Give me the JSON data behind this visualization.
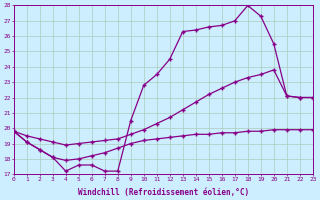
{
  "xlabel": "Windchill (Refroidissement éolien,°C)",
  "bg_color": "#cceeff",
  "grid_color": "#aaccbb",
  "line_color": "#880088",
  "x_min": 0,
  "x_max": 23,
  "y_min": 17,
  "y_max": 28,
  "line1_x": [
    0,
    1,
    2,
    3,
    4,
    5,
    6,
    7,
    8,
    9,
    10,
    11,
    12,
    13,
    14,
    15,
    16,
    17,
    18,
    19,
    20,
    21,
    22,
    23
  ],
  "line1_y": [
    19.8,
    19.1,
    18.6,
    18.1,
    17.2,
    17.6,
    17.6,
    17.2,
    17.2,
    20.5,
    22.8,
    23.5,
    24.5,
    26.3,
    26.4,
    26.6,
    26.7,
    27.0,
    28.0,
    27.3,
    25.5,
    22.1,
    22.0,
    22.0
  ],
  "line2_x": [
    0,
    1,
    2,
    3,
    4,
    5,
    6,
    7,
    8,
    9,
    10,
    11,
    12,
    13,
    14,
    15,
    16,
    17,
    18,
    19,
    20,
    21,
    22,
    23
  ],
  "line2_y": [
    19.8,
    19.5,
    19.3,
    19.1,
    18.9,
    19.0,
    19.1,
    19.2,
    19.3,
    19.6,
    19.9,
    20.3,
    20.7,
    21.2,
    21.7,
    22.2,
    22.6,
    23.0,
    23.3,
    23.5,
    23.8,
    22.1,
    22.0,
    22.0
  ],
  "line3_x": [
    0,
    1,
    2,
    3,
    4,
    5,
    6,
    7,
    8,
    9,
    10,
    11,
    12,
    13,
    14,
    15,
    16,
    17,
    18,
    19,
    20,
    21,
    22,
    23
  ],
  "line3_y": [
    19.8,
    19.1,
    18.6,
    18.1,
    17.9,
    18.0,
    18.2,
    18.4,
    18.7,
    19.0,
    19.2,
    19.3,
    19.4,
    19.5,
    19.6,
    19.6,
    19.7,
    19.7,
    19.8,
    19.8,
    19.9,
    19.9,
    19.9,
    19.9
  ]
}
